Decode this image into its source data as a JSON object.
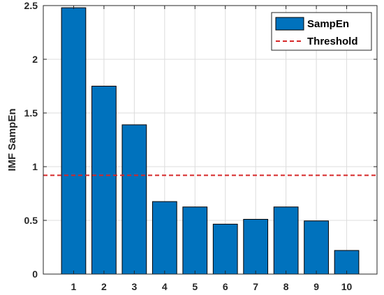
{
  "chart_data": {
    "type": "bar",
    "categories": [
      "1",
      "2",
      "3",
      "4",
      "5",
      "6",
      "7",
      "8",
      "9",
      "10"
    ],
    "series": [
      {
        "name": "SampEn",
        "values": [
          2.48,
          1.75,
          1.39,
          0.675,
          0.625,
          0.465,
          0.51,
          0.625,
          0.495,
          0.22
        ]
      }
    ],
    "threshold": {
      "name": "Threshold",
      "value": 0.92
    },
    "xlim": [
      0,
      11
    ],
    "ylim": [
      0,
      2.5
    ],
    "yticks": [
      "0",
      "0.5",
      "1",
      "1.5",
      "2",
      "2.5"
    ],
    "xlabel": "",
    "ylabel": "IMF SampEn",
    "grid": true,
    "legend_position": "top-right",
    "colors": {
      "bar_fill": "#0072BD",
      "bar_stroke": "#000000",
      "threshold": "#D62728",
      "grid": "#DCDCDC",
      "axis": "#262626"
    }
  }
}
